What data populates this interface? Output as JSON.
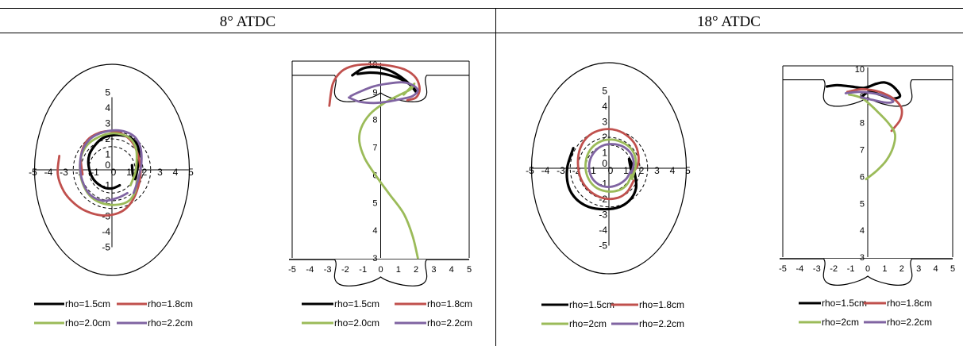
{
  "headers": [
    "8° ATDC",
    "18° ATDC"
  ],
  "colors": {
    "rho_1_5": "#000000",
    "rho_1_8": "#c0504d",
    "rho_2_0": "#9bbb59",
    "rho_2_2": "#8064a2"
  },
  "chart_data": [
    {
      "type": "line",
      "panel": "8° ATDC cross-section",
      "title": "",
      "xlabel": "",
      "ylabel": "",
      "xlim": [
        -5,
        5
      ],
      "ylim": [
        -5,
        5
      ],
      "x_ticks": [
        "-5",
        "-4",
        "-3",
        "-2",
        "-1",
        "0",
        "1",
        "2",
        "3",
        "4",
        "5"
      ],
      "y_ticks": [
        "-5",
        "-4",
        "-3",
        "-2",
        "-1",
        "0",
        "1",
        "2",
        "3",
        "4",
        "5"
      ],
      "guide_circles_radius": [
        1.5,
        2.0,
        2.5
      ],
      "series": [
        {
          "name": "rho=1.5cm",
          "color": "#000000",
          "x": [
            1.3,
            1.35,
            1.5,
            1.6,
            1.7,
            1.75,
            1.65,
            1.3,
            0.8,
            0.2,
            -0.5,
            -1.0,
            -1.45,
            -1.5,
            -1.2,
            -0.6,
            0.0,
            0.5
          ],
          "y": [
            0.3,
            -0.3,
            -0.6,
            -0.2,
            0.4,
            1.0,
            1.6,
            2.0,
            2.2,
            2.25,
            2.1,
            1.7,
            1.0,
            0.2,
            -0.6,
            -1.1,
            -1.2,
            -1.0
          ]
        },
        {
          "name": "rho=1.8cm",
          "color": "#c0504d",
          "x": [
            -3.4,
            -3.5,
            -3.1,
            -2.4,
            -1.6,
            -0.6,
            0.4,
            1.1,
            1.6,
            1.85,
            1.7,
            1.3,
            0.7,
            0.0,
            -0.8,
            -1.6,
            -2.0,
            -1.9
          ],
          "y": [
            0.9,
            -0.3,
            -1.4,
            -2.2,
            -2.7,
            -2.95,
            -2.8,
            -2.3,
            -1.4,
            -0.2,
            0.9,
            1.8,
            2.3,
            2.5,
            2.4,
            1.9,
            0.9,
            -0.3
          ]
        },
        {
          "name": "rho=2.0cm",
          "color": "#9bbb59",
          "x": [
            1.2,
            1.5,
            1.6,
            1.55,
            1.2,
            0.6,
            -0.1,
            -0.9,
            -1.6,
            -2.0,
            -2.05,
            -1.8,
            -1.3,
            -0.5,
            0.4,
            1.1,
            1.5,
            1.6
          ],
          "y": [
            -1.0,
            -0.2,
            0.6,
            1.4,
            2.0,
            2.3,
            2.35,
            2.1,
            1.6,
            0.8,
            -0.2,
            -1.1,
            -1.8,
            -2.2,
            -2.25,
            -2.0,
            -1.4,
            -0.7
          ]
        },
        {
          "name": "rho=2.2cm",
          "color": "#8064a2",
          "x": [
            1.4,
            1.7,
            1.9,
            1.85,
            1.5,
            0.9,
            0.1,
            -0.8,
            -1.5,
            -1.95,
            -2.05,
            -1.8,
            -1.3,
            -0.5,
            0.4,
            1.0
          ],
          "y": [
            -1.5,
            -0.6,
            0.4,
            1.4,
            2.1,
            2.45,
            2.55,
            2.35,
            1.9,
            1.1,
            0.0,
            -1.0,
            -1.7,
            -2.0,
            -1.8,
            -1.5
          ]
        }
      ],
      "legend": [
        "rho=1.5cm",
        "rho=1.8cm",
        "rho=2.0cm",
        "rho=2.2cm"
      ]
    },
    {
      "type": "line",
      "panel": "8° ATDC side view",
      "title": "",
      "xlabel": "",
      "ylabel": "",
      "xlim": [
        -5,
        5
      ],
      "ylim": [
        3,
        10
      ],
      "x_ticks": [
        "-5",
        "-4",
        "-3",
        "-2",
        "-1",
        "0",
        "1",
        "2",
        "3",
        "4",
        "5"
      ],
      "y_ticks": [
        "3",
        "4",
        "5",
        "6",
        "7",
        "8",
        "9",
        "10"
      ],
      "series": [
        {
          "name": "rho=1.5cm",
          "color": "#000000",
          "x": [
            -1.6,
            -1.0,
            -0.3,
            0.4,
            1.0,
            1.6,
            2.0,
            1.7,
            1.0,
            0.2,
            -0.6,
            -1.3
          ],
          "y": [
            9.6,
            9.85,
            9.9,
            9.8,
            9.6,
            9.3,
            9.0,
            9.25,
            9.5,
            9.65,
            9.7,
            9.65
          ]
        },
        {
          "name": "rho=1.8cm",
          "color": "#c0504d",
          "x": [
            -2.9,
            -2.7,
            -2.2,
            -1.5,
            -0.5,
            0.5,
            1.4,
            2.0,
            2.2,
            2.0,
            1.5
          ],
          "y": [
            8.5,
            9.3,
            9.75,
            9.95,
            10.0,
            9.95,
            9.8,
            9.5,
            9.1,
            8.8,
            8.7
          ]
        },
        {
          "name": "rho=2.0cm",
          "color": "#9bbb59",
          "x": [
            2.1,
            1.8,
            1.3,
            0.5,
            -0.3,
            -0.9,
            -1.2,
            -1.1,
            -0.6,
            0.2,
            1.1,
            1.7,
            1.9,
            1.6,
            1.3
          ],
          "y": [
            3.0,
            3.8,
            4.6,
            5.3,
            6.0,
            6.6,
            7.2,
            7.7,
            8.2,
            8.6,
            8.9,
            9.1,
            9.3,
            9.1,
            8.9
          ]
        },
        {
          "name": "rho=2.2cm",
          "color": "#8064a2",
          "x": [
            -1.8,
            -1.2,
            -0.4,
            0.4,
            1.2,
            1.8,
            2.1,
            1.8,
            1.2,
            0.4,
            -0.4,
            -1.2,
            -1.7
          ],
          "y": [
            8.8,
            8.65,
            8.6,
            8.65,
            8.75,
            8.85,
            9.05,
            9.25,
            9.35,
            9.3,
            9.2,
            9.0,
            8.85
          ]
        }
      ],
      "legend": [
        "rho=1.5cm",
        "rho=1.8cm",
        "rho=2.0cm",
        "rho=2.2cm"
      ]
    },
    {
      "type": "line",
      "panel": "18° ATDC cross-section",
      "title": "",
      "xlabel": "",
      "ylabel": "",
      "xlim": [
        -5,
        5
      ],
      "ylim": [
        -5,
        5
      ],
      "x_ticks": [
        "-5",
        "-4",
        "-3",
        "-2",
        "-1",
        "0",
        "1",
        "2",
        "3",
        "4",
        "5"
      ],
      "y_ticks": [
        "-5",
        "-4",
        "-3",
        "-2",
        "-1",
        "0",
        "1",
        "2",
        "3",
        "4",
        "5"
      ],
      "guide_circles_radius": [
        1.5,
        2.0,
        2.5
      ],
      "series": [
        {
          "name": "rho=1.5cm",
          "color": "#000000",
          "x": [
            -2.3,
            -2.7,
            -2.6,
            -2.1,
            -1.3,
            -0.3,
            0.7,
            1.4,
            1.75,
            1.7,
            1.5,
            1.3,
            1.45
          ],
          "y": [
            1.3,
            0.0,
            -1.2,
            -2.0,
            -2.5,
            -2.65,
            -2.5,
            -2.0,
            -1.3,
            -0.5,
            0.2,
            0.6,
            -0.2
          ]
        },
        {
          "name": "rho=1.8cm",
          "color": "#c0504d",
          "x": [
            1.45,
            1.9,
            1.8,
            1.3,
            0.5,
            -0.4,
            -1.3,
            -1.85,
            -2.0,
            -1.8,
            -1.2,
            -0.3,
            0.6,
            1.2,
            1.6
          ],
          "y": [
            -0.4,
            0.3,
            1.3,
            2.0,
            2.45,
            2.5,
            2.1,
            1.3,
            0.3,
            -0.7,
            -1.5,
            -1.95,
            -1.9,
            -1.5,
            -0.8
          ]
        },
        {
          "name": "rho=2cm",
          "color": "#9bbb59",
          "x": [
            1.5,
            1.75,
            1.55,
            1.0,
            0.2,
            -0.6,
            -1.2,
            -1.5,
            -1.4,
            -0.9,
            -0.1,
            0.7,
            1.2,
            1.5
          ],
          "y": [
            -0.7,
            0.3,
            1.1,
            1.6,
            1.85,
            1.7,
            1.2,
            0.4,
            -0.5,
            -1.2,
            -1.5,
            -1.4,
            -1.0,
            -0.3
          ]
        },
        {
          "name": "rho=2.2cm",
          "color": "#8064a2",
          "x": [
            1.45,
            1.6,
            1.45,
            1.0,
            0.4,
            -0.3,
            -0.9,
            -1.25,
            -1.2,
            -0.8,
            -0.2,
            0.5,
            1.1,
            1.4
          ],
          "y": [
            -0.3,
            0.3,
            0.9,
            1.35,
            1.55,
            1.5,
            1.1,
            0.4,
            -0.4,
            -0.95,
            -1.2,
            -1.1,
            -0.7,
            -0.2
          ]
        }
      ],
      "legend": [
        "rho=1.5cm",
        "rho=1.8cm",
        "rho=2cm",
        "rho=2.2cm"
      ]
    },
    {
      "type": "line",
      "panel": "18° ATDC side view",
      "title": "",
      "xlabel": "",
      "ylabel": "",
      "xlim": [
        -5,
        5
      ],
      "ylim": [
        3,
        10
      ],
      "x_ticks": [
        "-5",
        "-4",
        "-3",
        "-2",
        "-1",
        "0",
        "1",
        "2",
        "3",
        "4",
        "5"
      ],
      "y_ticks": [
        "3",
        "4",
        "5",
        "6",
        "7",
        "8",
        "9",
        "10"
      ],
      "series": [
        {
          "name": "rho=1.5cm",
          "color": "#000000",
          "x": [
            -2.4,
            -1.8,
            -1.0,
            -0.2,
            0.5,
            1.0,
            1.5,
            1.9,
            1.4,
            0.7,
            0.1,
            -0.3
          ],
          "y": [
            9.35,
            9.4,
            9.35,
            9.3,
            9.45,
            9.5,
            9.35,
            9.0,
            8.9,
            9.05,
            9.15,
            9.0
          ]
        },
        {
          "name": "rho=1.8cm",
          "color": "#c0504d",
          "x": [
            -1.2,
            -0.4,
            0.4,
            1.1,
            1.7,
            2.0,
            1.9,
            1.4
          ],
          "y": [
            9.15,
            9.25,
            9.2,
            9.05,
            8.8,
            8.5,
            8.1,
            7.7
          ]
        },
        {
          "name": "rho=2cm",
          "color": "#9bbb59",
          "x": [
            -0.1,
            0.5,
            1.1,
            1.5,
            1.6,
            1.2,
            0.6,
            0.1,
            -0.3,
            -0.7,
            -1.1
          ],
          "y": [
            5.9,
            6.2,
            6.6,
            7.1,
            7.6,
            8.0,
            8.4,
            8.7,
            8.9,
            9.0,
            9.05
          ]
        },
        {
          "name": "rho=2.2cm",
          "color": "#8064a2",
          "x": [
            -1.3,
            -0.5,
            0.3,
            1.0,
            1.5,
            1.1,
            0.3,
            -0.4
          ],
          "y": [
            9.1,
            9.15,
            9.1,
            9.0,
            8.8,
            8.75,
            8.85,
            8.95
          ]
        }
      ],
      "legend": [
        "rho=1.5cm",
        "rho=1.8cm",
        "rho=2cm",
        "rho=2.2cm"
      ]
    }
  ]
}
